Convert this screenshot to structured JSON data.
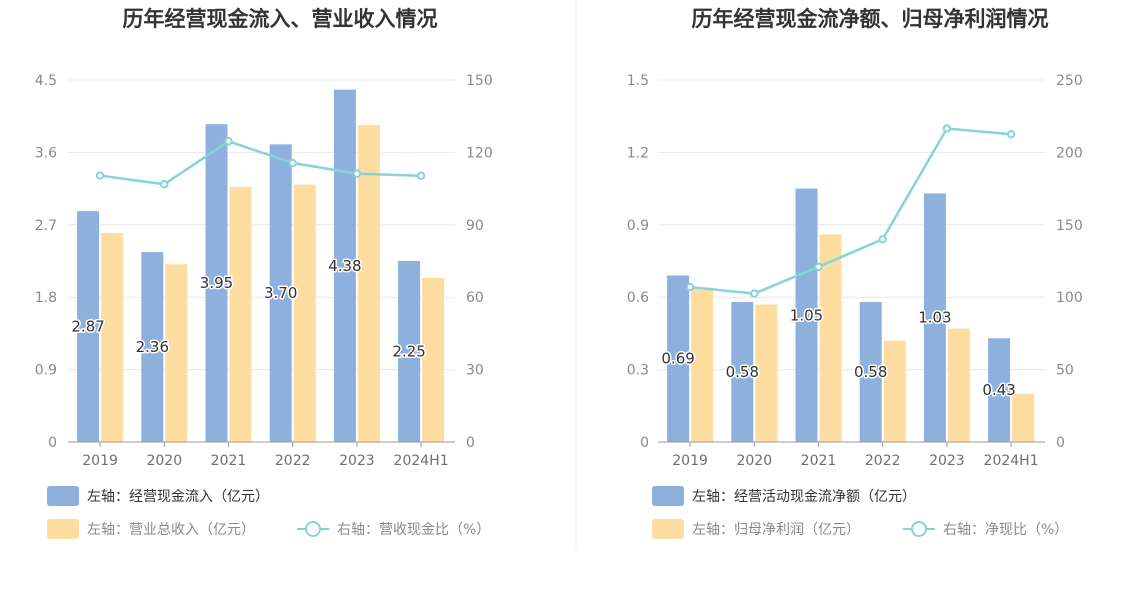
{
  "colors": {
    "bar_primary": "#8eb0dc",
    "bar_secondary": "#ffdda0",
    "line": "#86d3d8",
    "grid": "#e3e8f5",
    "axis": "#999999"
  },
  "chart_data": [
    {
      "type": "bar",
      "title": "历年经营现金流入、营业收入情况",
      "categories": [
        "2019",
        "2020",
        "2021",
        "2022",
        "2023",
        "2024H1"
      ],
      "left_axis": {
        "ylim": [
          0,
          4.5
        ],
        "ticks": [
          "0",
          "0.9",
          "1.8",
          "2.7",
          "3.6",
          "4.5"
        ]
      },
      "right_axis": {
        "ylim": [
          0,
          150
        ],
        "ticks": [
          "0",
          "30",
          "60",
          "90",
          "120",
          "150"
        ]
      },
      "grid": true,
      "legend_position": "bottom-left",
      "series": [
        {
          "name": "左轴：经营现金流入（亿元）",
          "axis": "left",
          "type": "bar",
          "values": [
            2.87,
            2.36,
            3.95,
            3.7,
            4.38,
            2.25
          ],
          "data_labels": [
            "2.87",
            "2.36",
            "3.95",
            "3.70",
            "4.38",
            "2.25"
          ]
        },
        {
          "name": "左轴：营业总收入（亿元）",
          "axis": "left",
          "type": "bar",
          "values": [
            2.6,
            2.21,
            3.17,
            3.2,
            3.94,
            2.04
          ]
        },
        {
          "name": "右轴：营收现金比（%）",
          "axis": "right",
          "type": "line",
          "values": [
            110.4,
            106.8,
            124.6,
            115.6,
            111.2,
            110.3
          ]
        }
      ]
    },
    {
      "type": "bar",
      "title": "历年经营现金流净额、归母净利润情况",
      "categories": [
        "2019",
        "2020",
        "2021",
        "2022",
        "2023",
        "2024H1"
      ],
      "left_axis": {
        "ylim": [
          0,
          1.5
        ],
        "ticks": [
          "0",
          "0.3",
          "0.6",
          "0.9",
          "1.2",
          "1.5"
        ]
      },
      "right_axis": {
        "ylim": [
          0,
          250
        ],
        "ticks": [
          "0",
          "50",
          "100",
          "150",
          "200",
          "250"
        ]
      },
      "grid": true,
      "legend_position": "bottom-left",
      "series": [
        {
          "name": "左轴：经营活动现金流净额（亿元）",
          "axis": "left",
          "type": "bar",
          "values": [
            0.69,
            0.58,
            1.05,
            0.58,
            1.03,
            0.43
          ],
          "data_labels": [
            "0.69",
            "0.58",
            "1.05",
            "0.58",
            "1.03",
            "0.43"
          ]
        },
        {
          "name": "左轴：归母净利润（亿元）",
          "axis": "left",
          "type": "bar",
          "values": [
            0.64,
            0.57,
            0.86,
            0.42,
            0.47,
            0.2
          ]
        },
        {
          "name": "右轴：净现比（%）",
          "axis": "right",
          "type": "line",
          "values": [
            107,
            102.5,
            121,
            140,
            216.5,
            212.5
          ]
        }
      ]
    }
  ]
}
